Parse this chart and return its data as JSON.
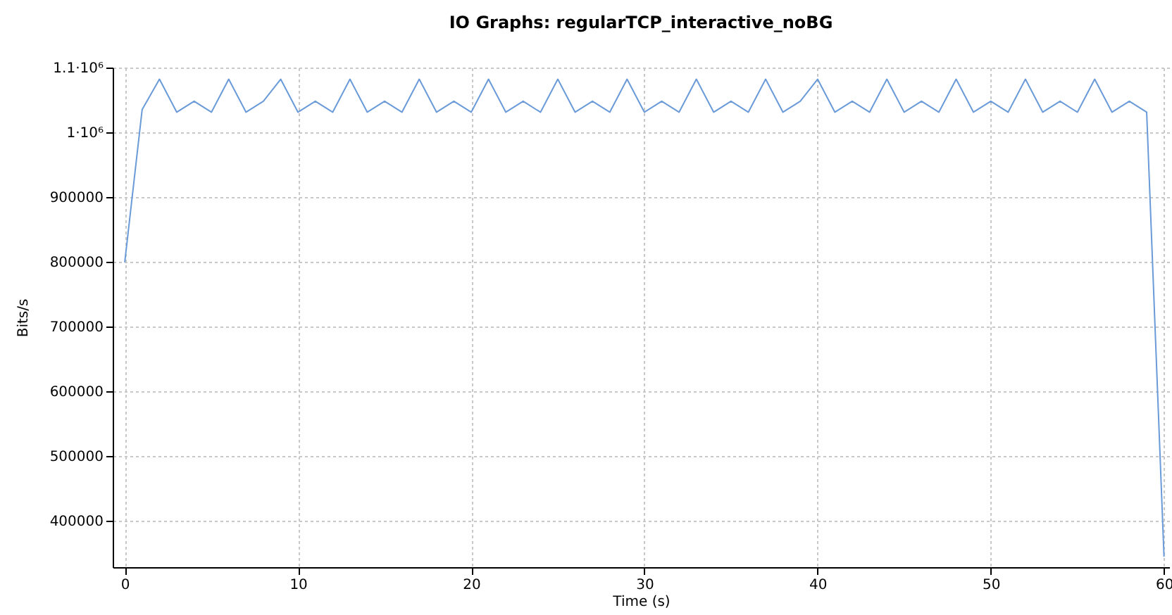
{
  "chart_data": {
    "type": "line",
    "title": "IO Graphs: regularTCP_interactive_noBG",
    "xlabel": "Time (s)",
    "ylabel": "Bits/s",
    "x": [
      0,
      1,
      2,
      3,
      4,
      5,
      6,
      7,
      8,
      9,
      10,
      11,
      12,
      13,
      14,
      15,
      16,
      17,
      18,
      19,
      20,
      21,
      22,
      23,
      24,
      25,
      26,
      27,
      28,
      29,
      30,
      31,
      32,
      33,
      34,
      35,
      36,
      37,
      38,
      39,
      40,
      41,
      42,
      43,
      44,
      45,
      46,
      47,
      48,
      49,
      50,
      51,
      52,
      53,
      54,
      55,
      56,
      57,
      58,
      59,
      60
    ],
    "series": [
      {
        "color": "#6a9bd8",
        "values": [
          800000,
          1035000,
          1082000,
          1031000,
          1048000,
          1031000,
          1082000,
          1031000,
          1048000,
          1082000,
          1031000,
          1048000,
          1031000,
          1082000,
          1031000,
          1048000,
          1031000,
          1082000,
          1031000,
          1048000,
          1031000,
          1082000,
          1031000,
          1048000,
          1031000,
          1082000,
          1031000,
          1048000,
          1031000,
          1082000,
          1031000,
          1048000,
          1031000,
          1082000,
          1031000,
          1048000,
          1031000,
          1082000,
          1031000,
          1048000,
          1082000,
          1031000,
          1048000,
          1031000,
          1082000,
          1031000,
          1048000,
          1031000,
          1082000,
          1031000,
          1048000,
          1031000,
          1082000,
          1031000,
          1048000,
          1031000,
          1082000,
          1031000,
          1048000,
          1031000,
          345000
        ]
      }
    ],
    "xlim": [
      -0.7,
      60.3
    ],
    "xticks": [
      0,
      10,
      20,
      30,
      40,
      50,
      60
    ],
    "ylim": [
      328000,
      1100000
    ],
    "yticks": [
      400000,
      500000,
      600000,
      700000,
      800000,
      900000,
      {
        "value": 1000000,
        "label": "1·10⁶"
      },
      {
        "value": 1100000,
        "label": "1.1·10⁶"
      }
    ],
    "grid": true,
    "line_style": "solid",
    "marker": "none"
  }
}
